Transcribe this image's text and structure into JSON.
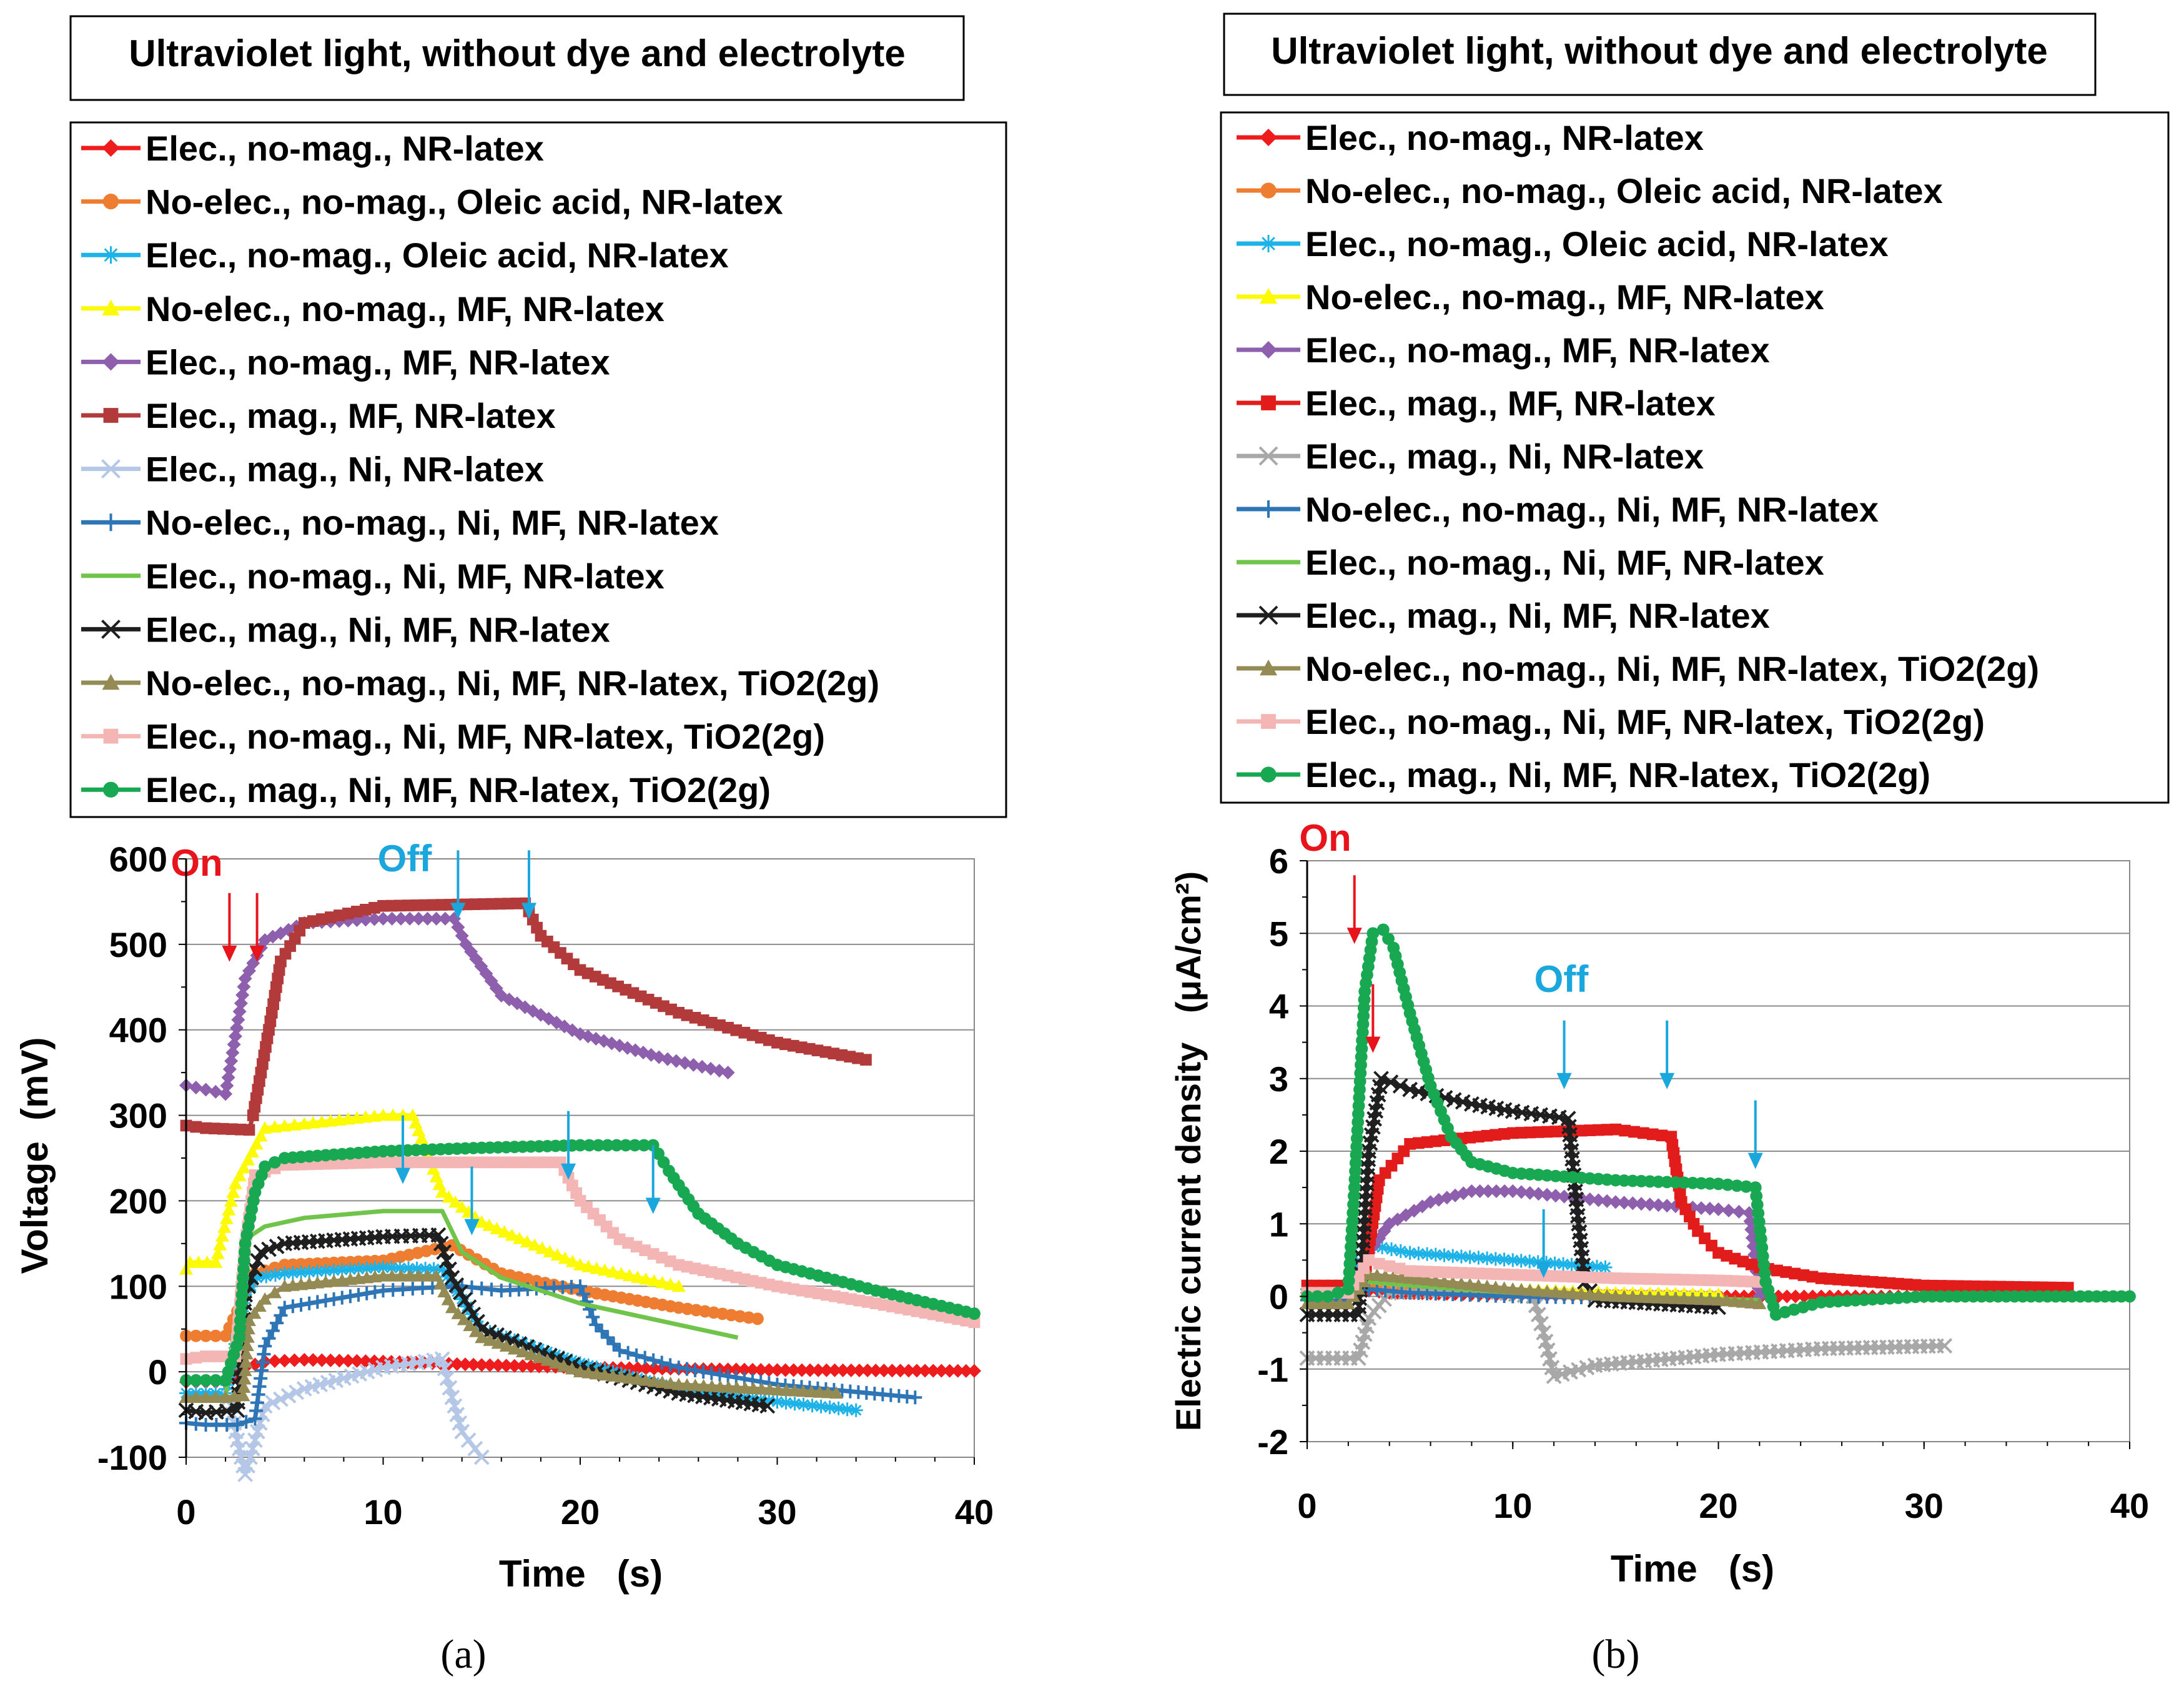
{
  "chart_data": [
    {
      "panel": "a",
      "type": "line",
      "title": "Ultraviolet light, without dye and electrolyte",
      "xlabel": "Time   (s)",
      "ylabel": "Voltage  (mV)",
      "xlim": [
        0,
        40
      ],
      "ylim": [
        -100,
        600
      ],
      "xticks": [
        0,
        10,
        20,
        30,
        40
      ],
      "yticks": [
        -100,
        0,
        100,
        200,
        300,
        400,
        500,
        600
      ],
      "grid": "horizontal",
      "legend_position": "top",
      "caption": "(a)",
      "annotations": [
        {
          "text": "On",
          "color": "#e8141c",
          "arrows_x": [
            2.2,
            3.6
          ],
          "arrow_y": 560
        },
        {
          "text": "Off",
          "color": "#1aa7dd",
          "arrows_x": [
            13.8,
            17.4,
            11.0,
            14.5,
            19.4,
            23.7
          ],
          "arrow_y_top": [
            610,
            610,
            300,
            240,
            305,
            265
          ]
        }
      ],
      "series": [
        {
          "name": "Elec., no-mag., NR-latex",
          "color": "#ee1c1c",
          "marker": "diamond",
          "x": [
            0,
            2,
            3,
            4,
            6,
            10,
            15,
            20,
            30,
            40
          ],
          "y": [
            -12,
            -12,
            5,
            12,
            14,
            12,
            8,
            5,
            2,
            1
          ]
        },
        {
          "name": "No-elec., no-mag., Oleic acid, NR-latex",
          "color": "#ee7d31",
          "marker": "circle",
          "x": [
            0,
            2,
            3,
            3.5,
            5,
            10,
            13.5,
            16,
            20,
            25,
            29
          ],
          "y": [
            42,
            42,
            90,
            115,
            125,
            130,
            148,
            115,
            95,
            75,
            62
          ]
        },
        {
          "name": "Elec., no-mag., Oleic acid, NR-latex",
          "color": "#1db3e8",
          "marker": "asterisk",
          "x": [
            0,
            2,
            3,
            3.6,
            5,
            10,
            13,
            15,
            20,
            25,
            30,
            34
          ],
          "y": [
            -25,
            -25,
            90,
            110,
            115,
            122,
            120,
            50,
            10,
            -20,
            -35,
            -45
          ]
        },
        {
          "name": "No-elec., no-mag., MF, NR-latex",
          "color": "#fdfa06",
          "marker": "triangle",
          "x": [
            0,
            0.2,
            1.5,
            2.5,
            4,
            6,
            10,
            11.5,
            13,
            15,
            20,
            25
          ],
          "y": [
            120,
            128,
            128,
            220,
            285,
            290,
            300,
            300,
            210,
            175,
            125,
            100
          ]
        },
        {
          "name": "Elec., no-mag., MF, NR-latex",
          "color": "#8e5fad",
          "marker": "diamond",
          "x": [
            0,
            2,
            3,
            4,
            6,
            10,
            13.6,
            14.2,
            16,
            20,
            24,
            27.5
          ],
          "y": [
            335,
            325,
            460,
            505,
            525,
            530,
            530,
            500,
            440,
            395,
            368,
            350
          ]
        },
        {
          "name": "Elec., mag., MF, NR-latex",
          "color": "#b23a3a",
          "marker": "square",
          "x": [
            0,
            1,
            3.2,
            3.4,
            4.2,
            4.8,
            6,
            10,
            17.2,
            18,
            20,
            25,
            30,
            34.5
          ],
          "y": [
            288,
            285,
            283,
            300,
            400,
            480,
            525,
            545,
            548,
            510,
            470,
            420,
            385,
            365
          ]
        },
        {
          "name": "Elec., mag., Ni, NR-latex",
          "color": "#b4c7e7",
          "marker": "x",
          "x": [
            2.2,
            2.6,
            3,
            4,
            6,
            10,
            13,
            13.5,
            14,
            15
          ],
          "y": [
            -30,
            -80,
            -120,
            -40,
            -20,
            5,
            15,
            -30,
            -70,
            -100
          ]
        },
        {
          "name": "No-elec., no-mag., Ni, MF, NR-latex",
          "color": "#2e75b6",
          "marker": "plus",
          "x": [
            0,
            1,
            2.6,
            3.5,
            4,
            5,
            10,
            12,
            14,
            16,
            20,
            20.8,
            22,
            25,
            30,
            37
          ],
          "y": [
            -60,
            -62,
            -62,
            -55,
            30,
            75,
            95,
            98,
            100,
            95,
            100,
            55,
            25,
            5,
            -15,
            -30
          ]
        },
        {
          "name": "Elec., no-mag., Ni, MF, NR-latex",
          "color": "#70c44a",
          "marker": "none",
          "x": [
            0,
            2,
            3,
            4,
            6,
            10,
            13,
            14,
            16,
            20,
            24,
            28
          ],
          "y": [
            -30,
            -30,
            155,
            170,
            180,
            188,
            188,
            140,
            110,
            80,
            60,
            40
          ]
        },
        {
          "name": "Elec., mag., Ni, MF, NR-latex",
          "color": "#1f1f1f",
          "marker": "x",
          "x": [
            0,
            1,
            2.6,
            3,
            3.8,
            5,
            10,
            12.8,
            13.5,
            15,
            20,
            25,
            29.5
          ],
          "y": [
            -45,
            -48,
            -45,
            90,
            140,
            150,
            158,
            160,
            110,
            50,
            5,
            -25,
            -40
          ]
        },
        {
          "name": "No-elec., no-mag., Ni, MF, NR-latex, TiO2(2g)",
          "color": "#948a54",
          "marker": "triangle",
          "x": [
            0,
            2,
            2.9,
            3.2,
            4,
            5,
            10,
            12.7,
            13.5,
            15,
            20,
            25,
            33
          ],
          "y": [
            -30,
            -30,
            -28,
            60,
            85,
            100,
            112,
            112,
            75,
            40,
            0,
            -15,
            -25
          ]
        },
        {
          "name": "Elec., no-mag., Ni, MF, NR-latex, TiO2(2g)",
          "color": "#f4b6b4",
          "marker": "square",
          "x": [
            0,
            1,
            2.5,
            3,
            3.5,
            5,
            10,
            19,
            20,
            22,
            25,
            30,
            35,
            40
          ],
          "y": [
            15,
            18,
            18,
            150,
            230,
            242,
            245,
            245,
            200,
            155,
            125,
            100,
            80,
            58
          ]
        },
        {
          "name": "Elec., mag., Ni, MF, NR-latex, TiO2(2g)",
          "color": "#17a851",
          "marker": "circle",
          "x": [
            0,
            2,
            2.7,
            3,
            3.5,
            4,
            5,
            10,
            15,
            20,
            23.7,
            24.5,
            26,
            28,
            30,
            35,
            40
          ],
          "y": [
            -10,
            -10,
            40,
            150,
            210,
            240,
            250,
            258,
            262,
            265,
            265,
            235,
            185,
            150,
            125,
            95,
            68
          ]
        }
      ]
    },
    {
      "panel": "b",
      "type": "line",
      "title": "Ultraviolet light, without dye and electrolyte",
      "xlabel": "Time   (s)",
      "ylabel": "Electric current density   (μA/cm²)",
      "xlim": [
        0,
        40
      ],
      "ylim": [
        -2,
        6
      ],
      "xticks": [
        0,
        10,
        20,
        30,
        40
      ],
      "yticks": [
        -2,
        -1,
        0,
        1,
        2,
        3,
        4,
        5,
        6
      ],
      "grid": "horizontal",
      "legend_position": "top",
      "caption": "(b)",
      "annotations": [
        {
          "text": "On",
          "color": "#e8141c",
          "arrows_x": [
            2.3,
            3.2
          ],
          "arrow_y_top": [
            5.8,
            4.3
          ]
        },
        {
          "text": "Off",
          "color": "#1aa7dd",
          "arrows_x": [
            12.5,
            17.5,
            21.8,
            11.5
          ],
          "arrow_y_top": [
            3.8,
            3.8,
            2.7,
            1.2
          ]
        }
      ],
      "series": [
        {
          "name": "Elec., no-mag., NR-latex",
          "color": "#ee1c1c",
          "marker": "diamond",
          "x": [
            0,
            2,
            3,
            4,
            10,
            15,
            20,
            25,
            30
          ],
          "y": [
            0.05,
            0.05,
            0.08,
            0.05,
            0.02,
            0.01,
            0.0,
            0.0,
            0.0
          ]
        },
        {
          "name": "No-elec., no-mag., Oleic acid, NR-latex",
          "color": "#ee7d31",
          "marker": "circle",
          "x": [
            0,
            2,
            3,
            5,
            10,
            15,
            20
          ],
          "y": [
            0.0,
            0.0,
            0.15,
            0.1,
            0.05,
            0.02,
            0.0
          ]
        },
        {
          "name": "Elec., no-mag., Oleic acid, NR-latex",
          "color": "#1db3e8",
          "marker": "asterisk",
          "x": [
            0,
            2,
            2.8,
            3.2,
            5,
            10,
            14.5
          ],
          "y": [
            0.1,
            0.1,
            0.6,
            0.7,
            0.6,
            0.5,
            0.4
          ]
        },
        {
          "name": "No-elec., no-mag., MF, NR-latex",
          "color": "#fdfa06",
          "marker": "triangle",
          "x": [
            0,
            2,
            3,
            5,
            10,
            15,
            20
          ],
          "y": [
            0.05,
            0.05,
            0.25,
            0.2,
            0.1,
            0.05,
            0.03
          ]
        },
        {
          "name": "Elec., no-mag., MF, NR-latex",
          "color": "#8e5fad",
          "marker": "diamond",
          "x": [
            0,
            2,
            3,
            4,
            6,
            8,
            10,
            15,
            20,
            21.5,
            22
          ],
          "y": [
            0.0,
            0.0,
            0.6,
            1.0,
            1.3,
            1.45,
            1.45,
            1.3,
            1.2,
            1.15,
            0.0
          ]
        },
        {
          "name": "Elec., mag., MF, NR-latex",
          "color": "#e21b1b",
          "marker": "square",
          "x": [
            0,
            2,
            2.8,
            3.5,
            5,
            10,
            15,
            17.7,
            18.2,
            19,
            20,
            22,
            25,
            30,
            37
          ],
          "y": [
            0.15,
            0.15,
            0.3,
            1.6,
            2.1,
            2.25,
            2.3,
            2.2,
            1.3,
            0.9,
            0.6,
            0.4,
            0.25,
            0.15,
            0.12
          ]
        },
        {
          "name": "Elec., mag., Ni, NR-latex",
          "color": "#a8a8a8",
          "marker": "x",
          "x": [
            0,
            2.5,
            3,
            4,
            8,
            11,
            11.5,
            12,
            14,
            20,
            25,
            31
          ],
          "y": [
            -0.85,
            -0.85,
            -0.3,
            0.05,
            0.1,
            0.0,
            -0.5,
            -1.1,
            -0.95,
            -0.8,
            -0.72,
            -0.68
          ]
        },
        {
          "name": "No-elec., no-mag., Ni, MF, NR-latex",
          "color": "#2e75b6",
          "marker": "plus",
          "x": [
            0,
            2,
            3,
            5,
            10,
            15,
            20
          ],
          "y": [
            -0.05,
            -0.05,
            0.1,
            0.05,
            0.0,
            -0.02,
            -0.05
          ]
        },
        {
          "name": "Elec., no-mag., Ni, MF, NR-latex",
          "color": "#70c44a",
          "marker": "none",
          "x": [
            0,
            2,
            3,
            5,
            10,
            15,
            22
          ],
          "y": [
            0.0,
            0.0,
            0.2,
            0.15,
            0.05,
            0.0,
            -0.05
          ]
        },
        {
          "name": "Elec., mag., Ni, MF, NR-latex",
          "color": "#1f1f1f",
          "marker": "x",
          "x": [
            0,
            2.5,
            3,
            3.6,
            5,
            8,
            10,
            12.7,
            13.2,
            13.5,
            14,
            20
          ],
          "y": [
            -0.25,
            -0.25,
            2.0,
            3.0,
            2.85,
            2.65,
            2.55,
            2.45,
            1.0,
            0.2,
            -0.05,
            -0.15
          ]
        },
        {
          "name": "No-elec., no-mag., Ni, MF, NR-latex, TiO2(2g)",
          "color": "#948a54",
          "marker": "triangle",
          "x": [
            0,
            2,
            3,
            5,
            10,
            15,
            20,
            22
          ],
          "y": [
            -0.1,
            -0.1,
            0.3,
            0.25,
            0.1,
            0.0,
            -0.05,
            -0.1
          ]
        },
        {
          "name": "Elec., no-mag., Ni, MF, NR-latex, TiO2(2g)",
          "color": "#f4b6b4",
          "marker": "square",
          "x": [
            0,
            2,
            3,
            3.5,
            5,
            10,
            15,
            20,
            22
          ],
          "y": [
            0.05,
            0.05,
            0.5,
            0.45,
            0.35,
            0.3,
            0.25,
            0.22,
            0.2
          ]
        },
        {
          "name": "Elec., mag., Ni, MF, NR-latex, TiO2(2g)",
          "color": "#17a851",
          "marker": "circle",
          "x": [
            0,
            1,
            2,
            2.3,
            2.8,
            3.2,
            3.7,
            4.2,
            5,
            6,
            7,
            8,
            10,
            15,
            20,
            21.8,
            22.3,
            22.8,
            25,
            30,
            40
          ],
          "y": [
            0.0,
            0.0,
            0.1,
            1.5,
            4.2,
            5.0,
            5.05,
            4.8,
            3.9,
            2.9,
            2.2,
            1.85,
            1.7,
            1.6,
            1.55,
            1.5,
            0.2,
            -0.25,
            -0.08,
            0.0,
            0.0
          ]
        }
      ]
    }
  ]
}
